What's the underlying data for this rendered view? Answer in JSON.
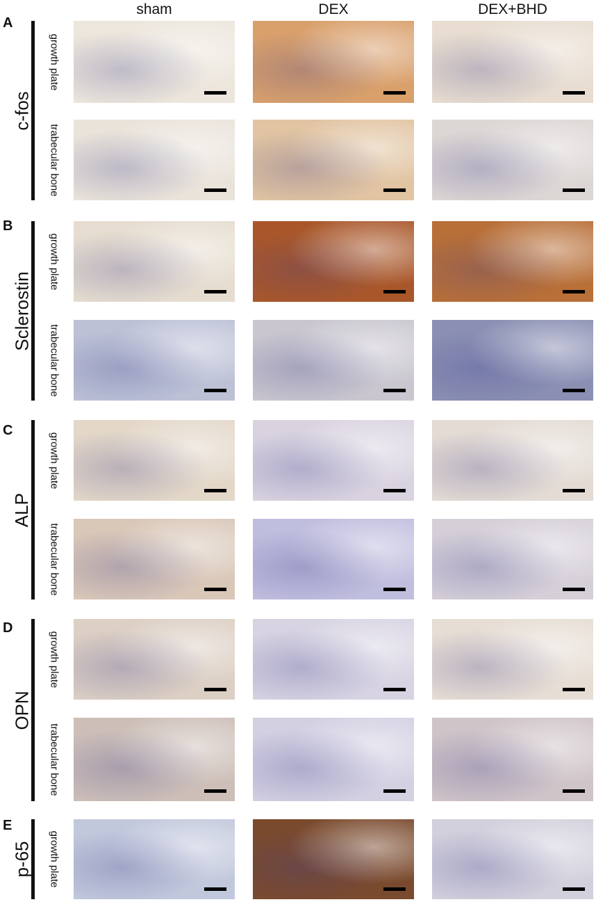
{
  "columns": [
    "sham",
    "DEX",
    "DEX+BHD"
  ],
  "panels": [
    {
      "letter": "A",
      "marker": "c-fos",
      "rows": [
        "growth plate",
        "trabecular bone"
      ]
    },
    {
      "letter": "B",
      "marker": "Sclerostin",
      "rows": [
        "growth plate",
        "trabecular bone"
      ]
    },
    {
      "letter": "C",
      "marker": "ALP",
      "rows": [
        "growth plate",
        "trabecular bone"
      ]
    },
    {
      "letter": "D",
      "marker": "OPN",
      "rows": [
        "growth plate",
        "trabecular bone"
      ]
    },
    {
      "letter": "E",
      "marker": "p-65",
      "rows": [
        "growth plate"
      ]
    }
  ],
  "image_tones": [
    [
      "#ece6dc",
      "#d9a06c",
      "#e8ddd0"
    ],
    [
      "#e9e3da",
      "#e1c4a2",
      "#dcd6d4"
    ],
    [
      "#e6ddd0",
      "#a9572a",
      "#b86f38"
    ],
    [
      "#bcc1d6",
      "#c9c6cf",
      "#8a8fb3"
    ],
    [
      "#e3d7c8",
      "#d9d3e0",
      "#e3dbd4"
    ],
    [
      "#d9c7b8",
      "#c0bede",
      "#d5cfd8"
    ],
    [
      "#dccfc4",
      "#d7d3e2",
      "#e6ddd4"
    ],
    [
      "#cdbfb8",
      "#d3d0e2",
      "#cfc4c8"
    ],
    [
      "#c2c8dc",
      "#7a4a2e",
      "#d2d0dc"
    ]
  ]
}
